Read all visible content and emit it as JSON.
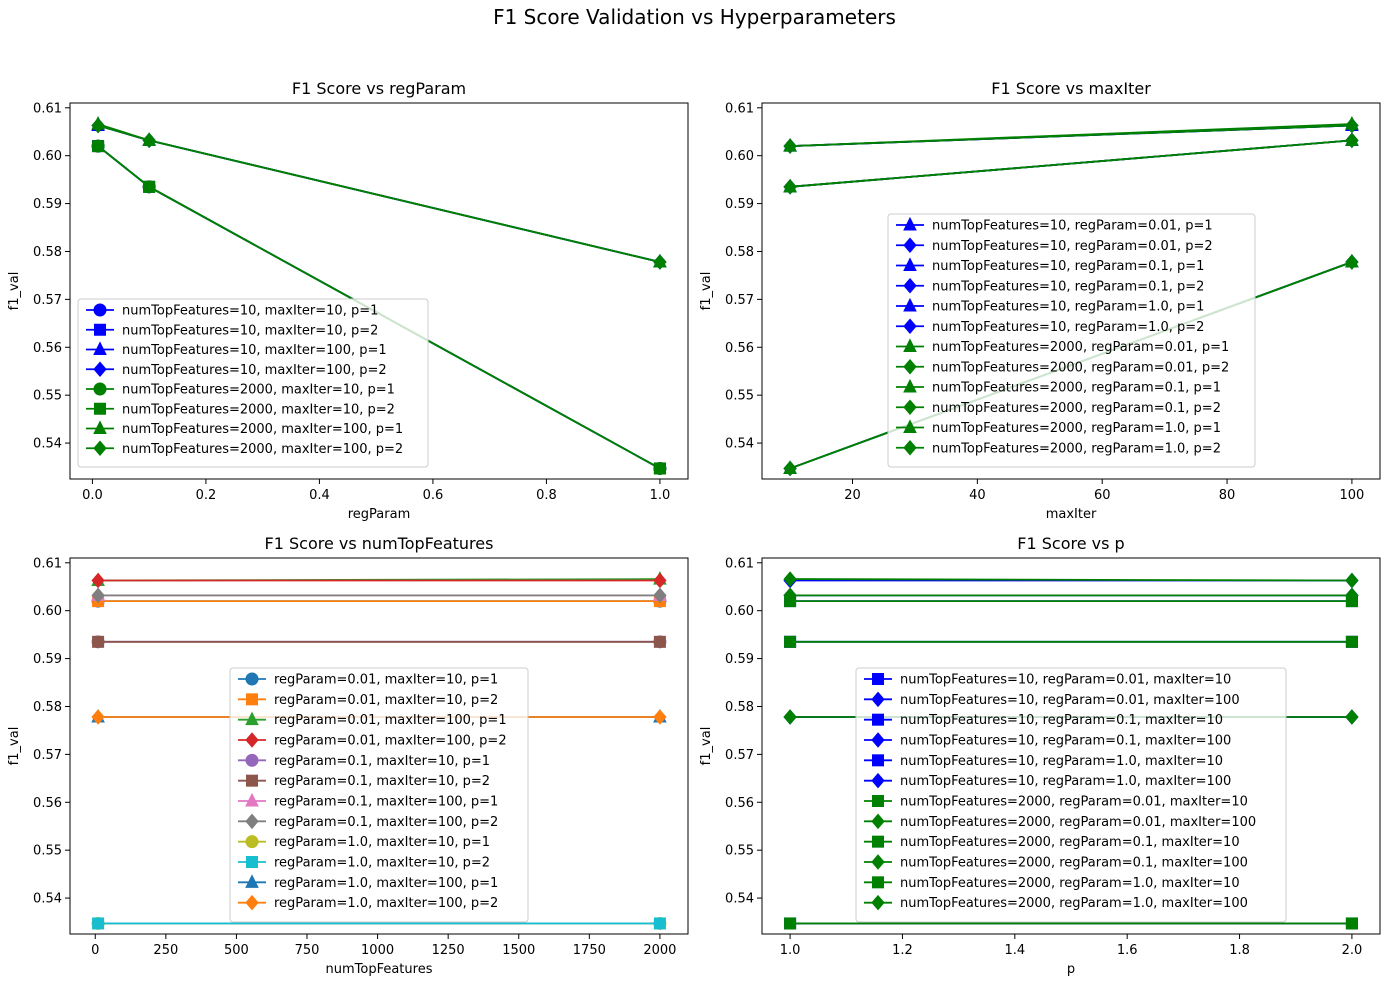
{
  "figure": {
    "title": "F1 Score Validation vs Hyperparameters"
  },
  "chart_data": [
    {
      "type": "line",
      "title": "F1 Score vs regParam",
      "xlabel": "regParam",
      "ylabel": "f1_val",
      "xlim": [
        -0.0395,
        1.0495
      ],
      "ylim": [
        0.5325,
        0.611
      ],
      "xticks": [
        0.0,
        0.2,
        0.4,
        0.6,
        0.8,
        1.0
      ],
      "xtick_labels": [
        "0.0",
        "0.2",
        "0.4",
        "0.6",
        "0.8",
        "1.0"
      ],
      "yticks": [
        0.54,
        0.55,
        0.56,
        0.57,
        0.58,
        0.59,
        0.6,
        0.61
      ],
      "ytick_labels": [
        "0.54",
        "0.55",
        "0.56",
        "0.57",
        "0.58",
        "0.59",
        "0.60",
        "0.61"
      ],
      "legend_loc": "lower-left",
      "x": [
        0.01,
        0.1,
        1.0
      ],
      "series": [
        {
          "name": "numTopFeatures=10, maxIter=10, p=1",
          "color": "#0000ff",
          "marker": "circle",
          "values": [
            0.602,
            0.5935,
            0.5347
          ]
        },
        {
          "name": "numTopFeatures=10, maxIter=10, p=2",
          "color": "#0000ff",
          "marker": "square",
          "values": [
            0.602,
            0.5935,
            0.5347
          ]
        },
        {
          "name": "numTopFeatures=10, maxIter=100, p=1",
          "color": "#0000ff",
          "marker": "triangle",
          "values": [
            0.6063,
            0.6032,
            0.5778
          ]
        },
        {
          "name": "numTopFeatures=10, maxIter=100, p=2",
          "color": "#0000ff",
          "marker": "diamond",
          "values": [
            0.6063,
            0.6032,
            0.5778
          ]
        },
        {
          "name": "numTopFeatures=2000, maxIter=10, p=1",
          "color": "#008000",
          "marker": "circle",
          "values": [
            0.602,
            0.5935,
            0.5347
          ]
        },
        {
          "name": "numTopFeatures=2000, maxIter=10, p=2",
          "color": "#008000",
          "marker": "square",
          "values": [
            0.602,
            0.5935,
            0.5347
          ]
        },
        {
          "name": "numTopFeatures=2000, maxIter=100, p=1",
          "color": "#008000",
          "marker": "triangle",
          "values": [
            0.6066,
            0.6032,
            0.5778
          ]
        },
        {
          "name": "numTopFeatures=2000, maxIter=100, p=2",
          "color": "#008000",
          "marker": "diamond",
          "values": [
            0.6063,
            0.6032,
            0.5778
          ]
        }
      ]
    },
    {
      "type": "line",
      "title": "F1 Score vs maxIter",
      "xlabel": "maxIter",
      "ylabel": "f1_val",
      "xlim": [
        5.5,
        104.5
      ],
      "ylim": [
        0.5325,
        0.611
      ],
      "xticks": [
        20,
        40,
        60,
        80,
        100
      ],
      "xtick_labels": [
        "20",
        "40",
        "60",
        "80",
        "100"
      ],
      "yticks": [
        0.54,
        0.55,
        0.56,
        0.57,
        0.58,
        0.59,
        0.6,
        0.61
      ],
      "ytick_labels": [
        "0.54",
        "0.55",
        "0.56",
        "0.57",
        "0.58",
        "0.59",
        "0.60",
        "0.61"
      ],
      "legend_loc": "lower-center",
      "x": [
        10,
        100
      ],
      "series": [
        {
          "name": "numTopFeatures=10, regParam=0.01, p=1",
          "color": "#0000ff",
          "marker": "triangle",
          "values": [
            0.602,
            0.6063
          ]
        },
        {
          "name": "numTopFeatures=10, regParam=0.01, p=2",
          "color": "#0000ff",
          "marker": "diamond",
          "values": [
            0.602,
            0.6063
          ]
        },
        {
          "name": "numTopFeatures=10, regParam=0.1, p=1",
          "color": "#0000ff",
          "marker": "triangle",
          "values": [
            0.5935,
            0.6032
          ]
        },
        {
          "name": "numTopFeatures=10, regParam=0.1, p=2",
          "color": "#0000ff",
          "marker": "diamond",
          "values": [
            0.5935,
            0.6032
          ]
        },
        {
          "name": "numTopFeatures=10, regParam=1.0, p=1",
          "color": "#0000ff",
          "marker": "triangle",
          "values": [
            0.5347,
            0.5778
          ]
        },
        {
          "name": "numTopFeatures=10, regParam=1.0, p=2",
          "color": "#0000ff",
          "marker": "diamond",
          "values": [
            0.5347,
            0.5778
          ]
        },
        {
          "name": "numTopFeatures=2000, regParam=0.01, p=1",
          "color": "#008000",
          "marker": "triangle",
          "values": [
            0.602,
            0.6066
          ]
        },
        {
          "name": "numTopFeatures=2000, regParam=0.01, p=2",
          "color": "#008000",
          "marker": "diamond",
          "values": [
            0.602,
            0.6063
          ]
        },
        {
          "name": "numTopFeatures=2000, regParam=0.1, p=1",
          "color": "#008000",
          "marker": "triangle",
          "values": [
            0.5935,
            0.6032
          ]
        },
        {
          "name": "numTopFeatures=2000, regParam=0.1, p=2",
          "color": "#008000",
          "marker": "diamond",
          "values": [
            0.5935,
            0.6032
          ]
        },
        {
          "name": "numTopFeatures=2000, regParam=1.0, p=1",
          "color": "#008000",
          "marker": "triangle",
          "values": [
            0.5347,
            0.5778
          ]
        },
        {
          "name": "numTopFeatures=2000, regParam=1.0, p=2",
          "color": "#008000",
          "marker": "diamond",
          "values": [
            0.5347,
            0.5778
          ]
        }
      ]
    },
    {
      "type": "line",
      "title": "F1 Score vs numTopFeatures",
      "xlabel": "numTopFeatures",
      "ylabel": "f1_val",
      "xlim": [
        -89.5,
        2099.5
      ],
      "ylim": [
        0.5325,
        0.611
      ],
      "xticks": [
        0,
        250,
        500,
        750,
        1000,
        1250,
        1500,
        1750,
        2000
      ],
      "xtick_labels": [
        "0",
        "250",
        "500",
        "750",
        "1000",
        "1250",
        "1500",
        "1750",
        "2000"
      ],
      "yticks": [
        0.54,
        0.55,
        0.56,
        0.57,
        0.58,
        0.59,
        0.6,
        0.61
      ],
      "ytick_labels": [
        "0.54",
        "0.55",
        "0.56",
        "0.57",
        "0.58",
        "0.59",
        "0.60",
        "0.61"
      ],
      "legend_loc": "lower-center",
      "x": [
        10,
        2000
      ],
      "series": [
        {
          "name": "regParam=0.01, maxIter=10, p=1",
          "color": "#1f77b4",
          "marker": "circle",
          "values": [
            0.602,
            0.602
          ]
        },
        {
          "name": "regParam=0.01, maxIter=10, p=2",
          "color": "#ff7f0e",
          "marker": "square",
          "values": [
            0.602,
            0.602
          ]
        },
        {
          "name": "regParam=0.01, maxIter=100, p=1",
          "color": "#2ca02c",
          "marker": "triangle",
          "values": [
            0.6063,
            0.6066
          ]
        },
        {
          "name": "regParam=0.01, maxIter=100, p=2",
          "color": "#d62728",
          "marker": "diamond",
          "values": [
            0.6063,
            0.6063
          ]
        },
        {
          "name": "regParam=0.1, maxIter=10, p=1",
          "color": "#9467bd",
          "marker": "circle",
          "values": [
            0.5935,
            0.5935
          ]
        },
        {
          "name": "regParam=0.1, maxIter=10, p=2",
          "color": "#8c564b",
          "marker": "square",
          "values": [
            0.5935,
            0.5935
          ]
        },
        {
          "name": "regParam=0.1, maxIter=100, p=1",
          "color": "#e377c2",
          "marker": "triangle",
          "values": [
            0.6032,
            0.6032
          ]
        },
        {
          "name": "regParam=0.1, maxIter=100, p=2",
          "color": "#7f7f7f",
          "marker": "diamond",
          "values": [
            0.6032,
            0.6032
          ]
        },
        {
          "name": "regParam=1.0, maxIter=10, p=1",
          "color": "#bcbd22",
          "marker": "circle",
          "values": [
            0.5347,
            0.5347
          ]
        },
        {
          "name": "regParam=1.0, maxIter=10, p=2",
          "color": "#17becf",
          "marker": "square",
          "values": [
            0.5347,
            0.5347
          ]
        },
        {
          "name": "regParam=1.0, maxIter=100, p=1",
          "color": "#1f77b4",
          "marker": "triangle",
          "values": [
            0.5778,
            0.5778
          ]
        },
        {
          "name": "regParam=1.0, maxIter=100, p=2",
          "color": "#ff7f0e",
          "marker": "diamond",
          "values": [
            0.5778,
            0.5778
          ]
        }
      ]
    },
    {
      "type": "line",
      "title": "F1 Score vs p",
      "xlabel": "p",
      "ylabel": "f1_val",
      "xlim": [
        0.95,
        2.05
      ],
      "ylim": [
        0.5325,
        0.611
      ],
      "xticks": [
        1.0,
        1.2,
        1.4,
        1.6,
        1.8,
        2.0
      ],
      "xtick_labels": [
        "1.0",
        "1.2",
        "1.4",
        "1.6",
        "1.8",
        "2.0"
      ],
      "yticks": [
        0.54,
        0.55,
        0.56,
        0.57,
        0.58,
        0.59,
        0.6,
        0.61
      ],
      "ytick_labels": [
        "0.54",
        "0.55",
        "0.56",
        "0.57",
        "0.58",
        "0.59",
        "0.60",
        "0.61"
      ],
      "legend_loc": "lower-center",
      "x": [
        1,
        2
      ],
      "series": [
        {
          "name": "numTopFeatures=10, regParam=0.01, maxIter=10",
          "color": "#0000ff",
          "marker": "square",
          "values": [
            0.602,
            0.602
          ]
        },
        {
          "name": "numTopFeatures=10, regParam=0.01, maxIter=100",
          "color": "#0000ff",
          "marker": "diamond",
          "values": [
            0.6063,
            0.6063
          ]
        },
        {
          "name": "numTopFeatures=10, regParam=0.1, maxIter=10",
          "color": "#0000ff",
          "marker": "square",
          "values": [
            0.5935,
            0.5935
          ]
        },
        {
          "name": "numTopFeatures=10, regParam=0.1, maxIter=100",
          "color": "#0000ff",
          "marker": "diamond",
          "values": [
            0.6032,
            0.6032
          ]
        },
        {
          "name": "numTopFeatures=10, regParam=1.0, maxIter=10",
          "color": "#0000ff",
          "marker": "square",
          "values": [
            0.5347,
            0.5347
          ]
        },
        {
          "name": "numTopFeatures=10, regParam=1.0, maxIter=100",
          "color": "#0000ff",
          "marker": "diamond",
          "values": [
            0.5778,
            0.5778
          ]
        },
        {
          "name": "numTopFeatures=2000, regParam=0.01, maxIter=10",
          "color": "#008000",
          "marker": "square",
          "values": [
            0.602,
            0.602
          ]
        },
        {
          "name": "numTopFeatures=2000, regParam=0.01, maxIter=100",
          "color": "#008000",
          "marker": "diamond",
          "values": [
            0.6066,
            0.6063
          ]
        },
        {
          "name": "numTopFeatures=2000, regParam=0.1, maxIter=10",
          "color": "#008000",
          "marker": "square",
          "values": [
            0.5935,
            0.5935
          ]
        },
        {
          "name": "numTopFeatures=2000, regParam=0.1, maxIter=100",
          "color": "#008000",
          "marker": "diamond",
          "values": [
            0.6032,
            0.6032
          ]
        },
        {
          "name": "numTopFeatures=2000, regParam=1.0, maxIter=10",
          "color": "#008000",
          "marker": "square",
          "values": [
            0.5347,
            0.5347
          ]
        },
        {
          "name": "numTopFeatures=2000, regParam=1.0, maxIter=100",
          "color": "#008000",
          "marker": "diamond",
          "values": [
            0.5778,
            0.5778
          ]
        }
      ]
    }
  ]
}
